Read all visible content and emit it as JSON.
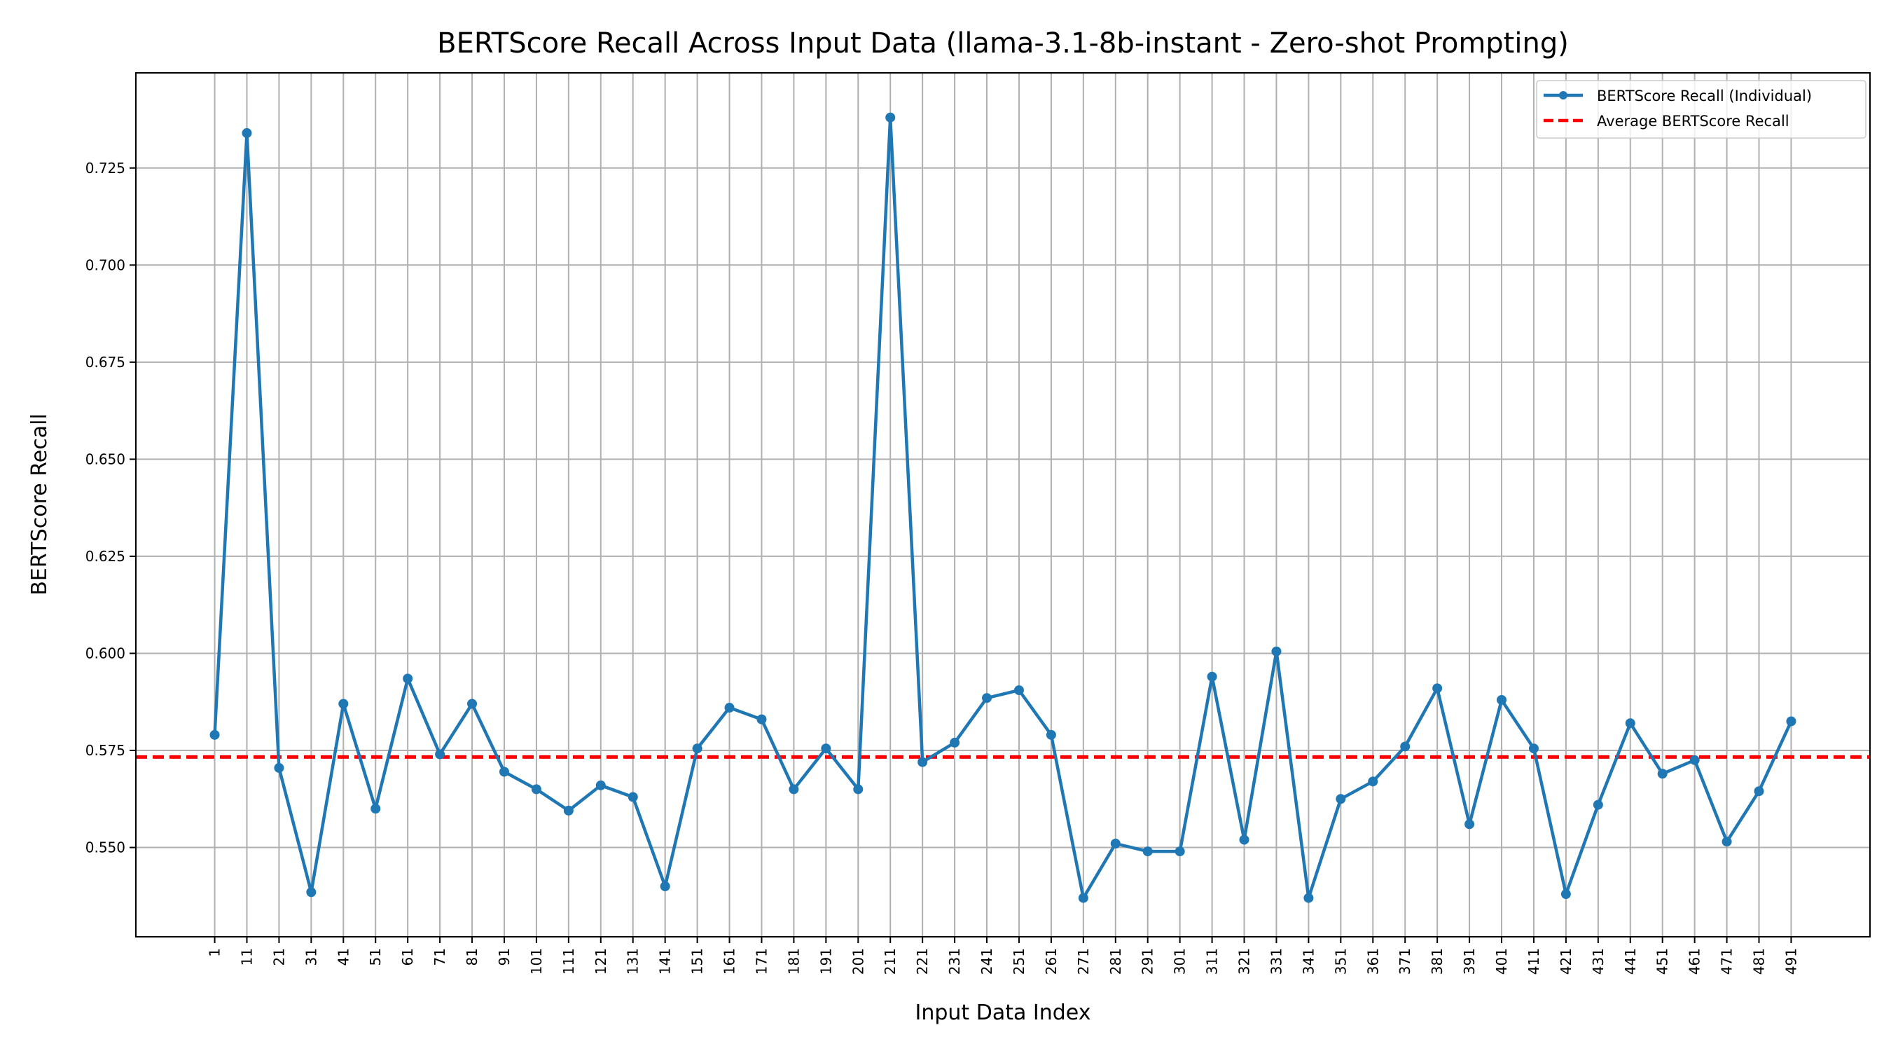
{
  "chart_data": {
    "type": "line",
    "title": "BERTScore Recall Across Input Data (llama-3.1-8b-instant - Zero-shot Prompting)",
    "xlabel": "Input Data Index",
    "ylabel": "BERTScore Recall",
    "x": [
      1,
      11,
      21,
      31,
      41,
      51,
      61,
      71,
      81,
      91,
      101,
      111,
      121,
      131,
      141,
      151,
      161,
      171,
      181,
      191,
      201,
      211,
      221,
      231,
      241,
      251,
      261,
      271,
      281,
      291,
      301,
      311,
      321,
      331,
      341,
      351,
      361,
      371,
      381,
      391,
      401,
      411,
      421,
      431,
      441,
      451,
      461,
      471,
      481,
      491
    ],
    "xticks": [
      "1",
      "11",
      "21",
      "31",
      "41",
      "51",
      "61",
      "71",
      "81",
      "91",
      "101",
      "111",
      "121",
      "131",
      "141",
      "151",
      "161",
      "171",
      "181",
      "191",
      "201",
      "211",
      "221",
      "231",
      "241",
      "251",
      "261",
      "271",
      "281",
      "291",
      "301",
      "311",
      "321",
      "331",
      "341",
      "351",
      "361",
      "371",
      "381",
      "391",
      "401",
      "411",
      "421",
      "431",
      "441",
      "451",
      "461",
      "471",
      "481",
      "491"
    ],
    "xlim": [
      -23.5,
      515.5
    ],
    "ylim": [
      0.527,
      0.7495
    ],
    "yticks": [
      0.55,
      0.575,
      0.6,
      0.625,
      0.65,
      0.675,
      0.7,
      0.725
    ],
    "ytick_labels": [
      "0.550",
      "0.575",
      "0.600",
      "0.625",
      "0.650",
      "0.675",
      "0.700",
      "0.725"
    ],
    "grid": true,
    "legend_position": "top-right",
    "series": [
      {
        "name": "BERTScore Recall (Individual)",
        "color": "#1f77b4",
        "marker": "circle",
        "values": [
          0.579,
          0.734,
          0.5705,
          0.5385,
          0.587,
          0.56,
          0.5935,
          0.574,
          0.587,
          0.5695,
          0.565,
          0.5595,
          0.566,
          0.563,
          0.54,
          0.5755,
          0.586,
          0.583,
          0.565,
          0.5755,
          0.565,
          0.738,
          0.572,
          0.577,
          0.5885,
          0.5905,
          0.579,
          0.537,
          0.551,
          0.549,
          0.549,
          0.594,
          0.552,
          0.6005,
          0.537,
          0.5625,
          0.567,
          0.576,
          0.591,
          0.556,
          0.588,
          0.5755,
          0.538,
          0.561,
          0.582,
          0.569,
          0.5725,
          0.5515,
          0.5645,
          0.5825
        ]
      },
      {
        "name": "Average BERTScore Recall",
        "color": "#ff0000",
        "style": "dashed",
        "value": 0.5733
      }
    ]
  }
}
